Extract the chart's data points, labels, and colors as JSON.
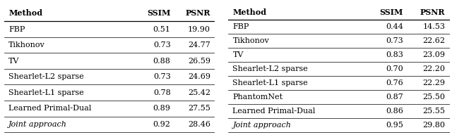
{
  "table1": {
    "header": [
      "Method",
      "SSIM",
      "PSNR"
    ],
    "rows": [
      [
        "FBP",
        "0.51",
        "19.90"
      ],
      [
        "Tikhonov",
        "0.73",
        "24.77"
      ],
      [
        "TV",
        "0.88",
        "26.59"
      ],
      [
        "Shearlet-L2 sparse",
        "0.73",
        "24.69"
      ],
      [
        "Shearlet-L1 sparse",
        "0.78",
        "25.42"
      ],
      [
        "Learned Primal-Dual",
        "0.89",
        "27.55"
      ],
      [
        "Joint approach",
        "0.92",
        "28.46"
      ]
    ],
    "italic_last": true
  },
  "table2": {
    "header": [
      "Method",
      "SSIM",
      "PSNR"
    ],
    "rows": [
      [
        "FBP",
        "0.44",
        "14.53"
      ],
      [
        "Tikhonov",
        "0.73",
        "22.62"
      ],
      [
        "TV",
        "0.83",
        "23.09"
      ],
      [
        "Shearlet-L2 sparse",
        "0.70",
        "22.20"
      ],
      [
        "Shearlet-L1 sparse",
        "0.76",
        "22.29"
      ],
      [
        "PhantomNet",
        "0.87",
        "25.50"
      ],
      [
        "Learned Primal-Dual",
        "0.86",
        "25.55"
      ],
      [
        "Joint approach",
        "0.95",
        "29.80"
      ]
    ],
    "italic_last": true
  },
  "bg_color": "#ffffff",
  "font_size": 8.0,
  "header_font_size": 8.0,
  "line_color": "#000000",
  "line_lw_header": 0.9,
  "line_lw_row": 0.5
}
